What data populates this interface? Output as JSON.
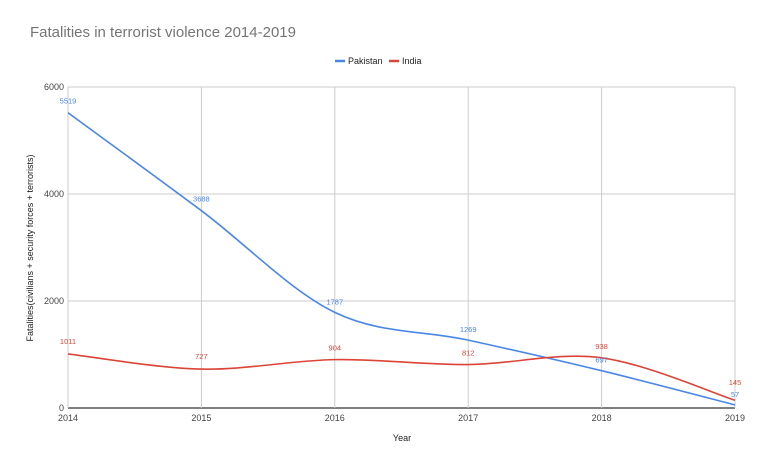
{
  "chart_data": {
    "type": "line",
    "title": "Fatalities in terrorist violence 2014-2019",
    "xlabel": "Year",
    "ylabel": "Fatalities(civilians + security forces + terrorists)",
    "x": [
      "2014",
      "2015",
      "2016",
      "2017",
      "2018",
      "2019"
    ],
    "ylim": [
      0,
      6000
    ],
    "yticks": [
      0,
      2000,
      4000,
      6000
    ],
    "grid": true,
    "legend_position": "top-center",
    "series": [
      {
        "name": "Pakistan",
        "color": "#4a86e8",
        "values": [
          5519,
          3688,
          1787,
          1269,
          697,
          57
        ],
        "labels": [
          "5519",
          "3688",
          "1787",
          "1269",
          "697",
          "57"
        ]
      },
      {
        "name": "India",
        "color": "#db4437",
        "values": [
          1011,
          727,
          904,
          812,
          938,
          145
        ],
        "labels": [
          "1011",
          "727",
          "904",
          "812",
          "938",
          "145"
        ]
      }
    ]
  }
}
